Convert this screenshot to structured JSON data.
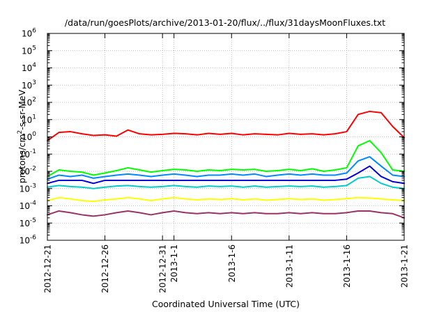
{
  "chart_data": {
    "type": "line",
    "title": "/data/run/goesPlots/archive/2013-01-20/flux/../flux/31daysMoonFluxes.txt",
    "xlabel": "Coordinated Universal Time (UTC)",
    "ylabel": {
      "prefix": "protons/cm",
      "sup": "2",
      "suffix": "-s-sr-MeV"
    },
    "yscale": "log",
    "ylim": [
      1e-06,
      1000000.0
    ],
    "xlim": [
      "2012-12-21",
      "2013-01-21"
    ],
    "grid": true,
    "legend": "none",
    "y_ticks": [
      {
        "value": 1e-06,
        "base": "10",
        "exp": "-6"
      },
      {
        "value": 1e-05,
        "base": "10",
        "exp": "-5"
      },
      {
        "value": 0.0001,
        "base": "10",
        "exp": "-4"
      },
      {
        "value": 0.001,
        "base": "10",
        "exp": "-3"
      },
      {
        "value": 0.01,
        "base": "10",
        "exp": "-2"
      },
      {
        "value": 0.1,
        "base": "10",
        "exp": "-1"
      },
      {
        "value": 1.0,
        "base": "10",
        "exp": "0"
      },
      {
        "value": 10.0,
        "base": "10",
        "exp": "1"
      },
      {
        "value": 100.0,
        "base": "10",
        "exp": "2"
      },
      {
        "value": 1000.0,
        "base": "10",
        "exp": "3"
      },
      {
        "value": 10000.0,
        "base": "10",
        "exp": "4"
      },
      {
        "value": 100000.0,
        "base": "10",
        "exp": "5"
      },
      {
        "value": 1000000.0,
        "base": "10",
        "exp": "6"
      }
    ],
    "x_ticks": [
      {
        "day": 0,
        "label": "2012-12-21"
      },
      {
        "day": 5,
        "label": "2012-12-26"
      },
      {
        "day": 10,
        "label": "2012-12-31"
      },
      {
        "day": 11,
        "label": "2013-1-1"
      },
      {
        "day": 16,
        "label": "2013-1-6"
      },
      {
        "day": 21,
        "label": "2013-1-11"
      },
      {
        "day": 26,
        "label": "2013-1-16"
      },
      {
        "day": 31,
        "label": "2013-1-21"
      }
    ],
    "series": [
      {
        "color": "#ff0000",
        "values": [
          [
            "2012-12-21",
            0.6
          ],
          [
            "2012-12-22",
            1.8
          ],
          [
            "2012-12-23",
            2.0
          ],
          [
            "2012-12-24",
            1.5
          ],
          [
            "2012-12-25",
            1.2
          ],
          [
            "2012-12-26",
            1.3
          ],
          [
            "2012-12-27",
            1.1
          ],
          [
            "2012-12-28",
            2.5
          ],
          [
            "2012-12-29",
            1.5
          ],
          [
            "2012-12-30",
            1.3
          ],
          [
            "2012-12-31",
            1.4
          ],
          [
            "2013-01-01",
            1.6
          ],
          [
            "2013-01-02",
            1.5
          ],
          [
            "2013-01-03",
            1.3
          ],
          [
            "2013-01-04",
            1.6
          ],
          [
            "2013-01-05",
            1.4
          ],
          [
            "2013-01-06",
            1.6
          ],
          [
            "2013-01-07",
            1.3
          ],
          [
            "2013-01-08",
            1.5
          ],
          [
            "2013-01-09",
            1.4
          ],
          [
            "2013-01-10",
            1.3
          ],
          [
            "2013-01-11",
            1.6
          ],
          [
            "2013-01-12",
            1.4
          ],
          [
            "2013-01-13",
            1.5
          ],
          [
            "2013-01-14",
            1.3
          ],
          [
            "2013-01-15",
            1.5
          ],
          [
            "2013-01-16",
            2.0
          ],
          [
            "2013-01-17",
            20
          ],
          [
            "2013-01-18",
            30
          ],
          [
            "2013-01-19",
            25
          ],
          [
            "2013-01-20",
            4
          ],
          [
            "2013-01-21",
            0.9
          ]
        ]
      },
      {
        "color": "#00ff00",
        "values": [
          [
            "2012-12-21",
            0.005
          ],
          [
            "2012-12-22",
            0.012
          ],
          [
            "2012-12-23",
            0.01
          ],
          [
            "2012-12-24",
            0.009
          ],
          [
            "2012-12-25",
            0.006
          ],
          [
            "2012-12-26",
            0.008
          ],
          [
            "2012-12-27",
            0.011
          ],
          [
            "2012-12-28",
            0.016
          ],
          [
            "2012-12-29",
            0.012
          ],
          [
            "2012-12-30",
            0.009
          ],
          [
            "2012-12-31",
            0.011
          ],
          [
            "2013-01-01",
            0.013
          ],
          [
            "2013-01-02",
            0.012
          ],
          [
            "2013-01-03",
            0.01
          ],
          [
            "2013-01-04",
            0.012
          ],
          [
            "2013-01-05",
            0.011
          ],
          [
            "2013-01-06",
            0.013
          ],
          [
            "2013-01-07",
            0.012
          ],
          [
            "2013-01-08",
            0.013
          ],
          [
            "2013-01-09",
            0.01
          ],
          [
            "2013-01-10",
            0.011
          ],
          [
            "2013-01-11",
            0.013
          ],
          [
            "2013-01-12",
            0.011
          ],
          [
            "2013-01-13",
            0.014
          ],
          [
            "2013-01-14",
            0.01
          ],
          [
            "2013-01-15",
            0.012
          ],
          [
            "2013-01-16",
            0.016
          ],
          [
            "2013-01-17",
            0.3
          ],
          [
            "2013-01-18",
            0.6
          ],
          [
            "2013-01-19",
            0.12
          ],
          [
            "2013-01-20",
            0.012
          ],
          [
            "2013-01-21",
            0.01
          ]
        ]
      },
      {
        "color": "#0088ff",
        "values": [
          [
            "2012-12-21",
            0.0035
          ],
          [
            "2012-12-22",
            0.006
          ],
          [
            "2012-12-23",
            0.005
          ],
          [
            "2012-12-24",
            0.006
          ],
          [
            "2012-12-25",
            0.004
          ],
          [
            "2012-12-26",
            0.005
          ],
          [
            "2012-12-27",
            0.006
          ],
          [
            "2012-12-28",
            0.007
          ],
          [
            "2012-12-29",
            0.006
          ],
          [
            "2012-12-30",
            0.005
          ],
          [
            "2012-12-31",
            0.006
          ],
          [
            "2013-01-01",
            0.007
          ],
          [
            "2013-01-02",
            0.006
          ],
          [
            "2013-01-03",
            0.005
          ],
          [
            "2013-01-04",
            0.006
          ],
          [
            "2013-01-05",
            0.006
          ],
          [
            "2013-01-06",
            0.007
          ],
          [
            "2013-01-07",
            0.006
          ],
          [
            "2013-01-08",
            0.007
          ],
          [
            "2013-01-09",
            0.005
          ],
          [
            "2013-01-10",
            0.006
          ],
          [
            "2013-01-11",
            0.007
          ],
          [
            "2013-01-12",
            0.006
          ],
          [
            "2013-01-13",
            0.007
          ],
          [
            "2013-01-14",
            0.006
          ],
          [
            "2013-01-15",
            0.006
          ],
          [
            "2013-01-16",
            0.008
          ],
          [
            "2013-01-17",
            0.04
          ],
          [
            "2013-01-18",
            0.07
          ],
          [
            "2013-01-19",
            0.02
          ],
          [
            "2013-01-20",
            0.006
          ],
          [
            "2013-01-21",
            0.005
          ]
        ]
      },
      {
        "color": "#0000dd",
        "values": [
          [
            "2012-12-21",
            0.002
          ],
          [
            "2012-12-22",
            0.003
          ],
          [
            "2012-12-23",
            0.003
          ],
          [
            "2012-12-24",
            0.003
          ],
          [
            "2012-12-25",
            0.002
          ],
          [
            "2012-12-26",
            0.003
          ],
          [
            "2012-12-27",
            0.003
          ],
          [
            "2012-12-28",
            0.003
          ],
          [
            "2012-12-29",
            0.003
          ],
          [
            "2012-12-30",
            0.003
          ],
          [
            "2012-12-31",
            0.003
          ],
          [
            "2013-01-01",
            0.003
          ],
          [
            "2013-01-02",
            0.003
          ],
          [
            "2013-01-03",
            0.003
          ],
          [
            "2013-01-04",
            0.003
          ],
          [
            "2013-01-05",
            0.003
          ],
          [
            "2013-01-06",
            0.003
          ],
          [
            "2013-01-07",
            0.003
          ],
          [
            "2013-01-08",
            0.003
          ],
          [
            "2013-01-09",
            0.003
          ],
          [
            "2013-01-10",
            0.003
          ],
          [
            "2013-01-11",
            0.003
          ],
          [
            "2013-01-12",
            0.003
          ],
          [
            "2013-01-13",
            0.003
          ],
          [
            "2013-01-14",
            0.003
          ],
          [
            "2013-01-15",
            0.003
          ],
          [
            "2013-01-16",
            0.0035
          ],
          [
            "2013-01-17",
            0.008
          ],
          [
            "2013-01-18",
            0.02
          ],
          [
            "2013-01-19",
            0.005
          ],
          [
            "2013-01-20",
            0.0025
          ],
          [
            "2013-01-21",
            0.002
          ]
        ]
      },
      {
        "color": "#00cccc",
        "values": [
          [
            "2012-12-21",
            0.0012
          ],
          [
            "2012-12-22",
            0.0015
          ],
          [
            "2012-12-23",
            0.0013
          ],
          [
            "2012-12-24",
            0.0012
          ],
          [
            "2012-12-25",
            0.001
          ],
          [
            "2012-12-26",
            0.0012
          ],
          [
            "2012-12-27",
            0.0014
          ],
          [
            "2012-12-28",
            0.0015
          ],
          [
            "2012-12-29",
            0.0013
          ],
          [
            "2012-12-30",
            0.0012
          ],
          [
            "2012-12-31",
            0.0013
          ],
          [
            "2013-01-01",
            0.0015
          ],
          [
            "2013-01-02",
            0.0013
          ],
          [
            "2013-01-03",
            0.0012
          ],
          [
            "2013-01-04",
            0.0014
          ],
          [
            "2013-01-05",
            0.0013
          ],
          [
            "2013-01-06",
            0.0014
          ],
          [
            "2013-01-07",
            0.0012
          ],
          [
            "2013-01-08",
            0.0014
          ],
          [
            "2013-01-09",
            0.0012
          ],
          [
            "2013-01-10",
            0.0013
          ],
          [
            "2013-01-11",
            0.0014
          ],
          [
            "2013-01-12",
            0.0013
          ],
          [
            "2013-01-13",
            0.0014
          ],
          [
            "2013-01-14",
            0.0012
          ],
          [
            "2013-01-15",
            0.0013
          ],
          [
            "2013-01-16",
            0.0015
          ],
          [
            "2013-01-17",
            0.004
          ],
          [
            "2013-01-18",
            0.005
          ],
          [
            "2013-01-19",
            0.002
          ],
          [
            "2013-01-20",
            0.0012
          ],
          [
            "2013-01-21",
            0.001
          ]
        ]
      },
      {
        "color": "#ffff00",
        "values": [
          [
            "2012-12-21",
            0.0002
          ],
          [
            "2012-12-22",
            0.0003
          ],
          [
            "2012-12-23",
            0.00025
          ],
          [
            "2012-12-24",
            0.0002
          ],
          [
            "2012-12-25",
            0.00018
          ],
          [
            "2012-12-26",
            0.00022
          ],
          [
            "2012-12-27",
            0.00025
          ],
          [
            "2012-12-28",
            0.0003
          ],
          [
            "2012-12-29",
            0.00025
          ],
          [
            "2012-12-30",
            0.0002
          ],
          [
            "2012-12-31",
            0.00025
          ],
          [
            "2013-01-01",
            0.0003
          ],
          [
            "2013-01-02",
            0.00025
          ],
          [
            "2013-01-03",
            0.00022
          ],
          [
            "2013-01-04",
            0.00025
          ],
          [
            "2013-01-05",
            0.00023
          ],
          [
            "2013-01-06",
            0.00026
          ],
          [
            "2013-01-07",
            0.00022
          ],
          [
            "2013-01-08",
            0.00025
          ],
          [
            "2013-01-09",
            0.00021
          ],
          [
            "2013-01-10",
            0.00023
          ],
          [
            "2013-01-11",
            0.00026
          ],
          [
            "2013-01-12",
            0.00023
          ],
          [
            "2013-01-13",
            0.00025
          ],
          [
            "2013-01-14",
            0.00021
          ],
          [
            "2013-01-15",
            0.00023
          ],
          [
            "2013-01-16",
            0.00026
          ],
          [
            "2013-01-17",
            0.0003
          ],
          [
            "2013-01-18",
            0.00028
          ],
          [
            "2013-01-19",
            0.00025
          ],
          [
            "2013-01-20",
            0.00022
          ],
          [
            "2013-01-21",
            0.0002
          ]
        ]
      },
      {
        "color": "#993366",
        "values": [
          [
            "2012-12-21",
            3e-05
          ],
          [
            "2012-12-22",
            5e-05
          ],
          [
            "2012-12-23",
            4e-05
          ],
          [
            "2012-12-24",
            3e-05
          ],
          [
            "2012-12-25",
            2.5e-05
          ],
          [
            "2012-12-26",
            3e-05
          ],
          [
            "2012-12-27",
            4e-05
          ],
          [
            "2012-12-28",
            5e-05
          ],
          [
            "2012-12-29",
            4e-05
          ],
          [
            "2012-12-30",
            3e-05
          ],
          [
            "2012-12-31",
            4e-05
          ],
          [
            "2013-01-01",
            5e-05
          ],
          [
            "2013-01-02",
            4e-05
          ],
          [
            "2013-01-03",
            3.5e-05
          ],
          [
            "2013-01-04",
            4e-05
          ],
          [
            "2013-01-05",
            3.5e-05
          ],
          [
            "2013-01-06",
            4e-05
          ],
          [
            "2013-01-07",
            3.5e-05
          ],
          [
            "2013-01-08",
            4e-05
          ],
          [
            "2013-01-09",
            3.5e-05
          ],
          [
            "2013-01-10",
            3.5e-05
          ],
          [
            "2013-01-11",
            4e-05
          ],
          [
            "2013-01-12",
            3.5e-05
          ],
          [
            "2013-01-13",
            4e-05
          ],
          [
            "2013-01-14",
            3.5e-05
          ],
          [
            "2013-01-15",
            3.5e-05
          ],
          [
            "2013-01-16",
            4e-05
          ],
          [
            "2013-01-17",
            5e-05
          ],
          [
            "2013-01-18",
            5e-05
          ],
          [
            "2013-01-19",
            4e-05
          ],
          [
            "2013-01-20",
            3.5e-05
          ],
          [
            "2013-01-21",
            2e-05
          ]
        ]
      }
    ]
  }
}
